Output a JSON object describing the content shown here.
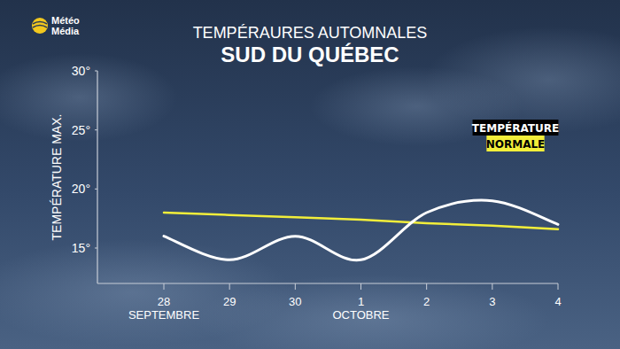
{
  "chart_data": {
    "type": "line",
    "logo_text": [
      "Météo",
      "Média"
    ],
    "title": "TEMPÉRAURES AUTOMNALES",
    "subtitle": "SUD DU QUÉBEC",
    "y_label": "TEMPÉRATURE MAX.",
    "categories": [
      "28",
      "29",
      "30",
      "1",
      "2",
      "3",
      "4"
    ],
    "category_sublabels": [
      "SEPTEMBRE",
      null,
      null,
      "OCTOBRE",
      null,
      null,
      null
    ],
    "series": [
      {
        "name": "TEMPÉRATURE",
        "color": "#ffffff",
        "line_style": "smooth",
        "values": [
          16,
          14,
          16,
          14,
          18,
          19,
          17
        ]
      },
      {
        "name": "NORMALE",
        "color": "#f2ee3a",
        "line_style": "solid",
        "values": [
          18,
          17.8,
          17.6,
          17.4,
          17.1,
          16.9,
          16.6
        ]
      }
    ],
    "ylim": [
      12,
      30
    ],
    "yticks": [
      {
        "value": 15,
        "label": "15°"
      },
      {
        "value": 20,
        "label": "20°"
      },
      {
        "value": 25,
        "label": "25°"
      },
      {
        "value": 30,
        "label": "30°"
      }
    ],
    "grid": false,
    "legend": "right"
  }
}
